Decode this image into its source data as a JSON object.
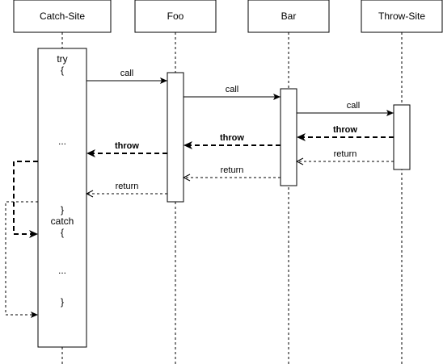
{
  "participants": [
    {
      "id": "catch",
      "label": "Catch-Site"
    },
    {
      "id": "foo",
      "label": "Foo"
    },
    {
      "id": "bar",
      "label": "Bar"
    },
    {
      "id": "throw",
      "label": "Throw-Site"
    }
  ],
  "activation_text": {
    "try": "try",
    "open_brace_1": "{",
    "ellipsis_1": "...",
    "close_brace_1": "}",
    "catch": "catch",
    "open_brace_2": "{",
    "ellipsis_2": "...",
    "close_brace_2": "}"
  },
  "messages": [
    {
      "id": "call-catch-foo",
      "label": "call",
      "kind": "call"
    },
    {
      "id": "call-foo-bar",
      "label": "call",
      "kind": "call"
    },
    {
      "id": "call-bar-throw",
      "label": "call",
      "kind": "call"
    },
    {
      "id": "throw-throw-bar",
      "label": "throw",
      "kind": "throw"
    },
    {
      "id": "return-throw-bar",
      "label": "return",
      "kind": "return"
    },
    {
      "id": "throw-bar-foo",
      "label": "throw",
      "kind": "throw"
    },
    {
      "id": "return-bar-foo",
      "label": "return",
      "kind": "return"
    },
    {
      "id": "throw-foo-catch",
      "label": "throw",
      "kind": "throw"
    },
    {
      "id": "return-foo-catch",
      "label": "return",
      "kind": "return"
    }
  ],
  "colors": {
    "stroke": "#000000",
    "background": "#ffffff"
  }
}
